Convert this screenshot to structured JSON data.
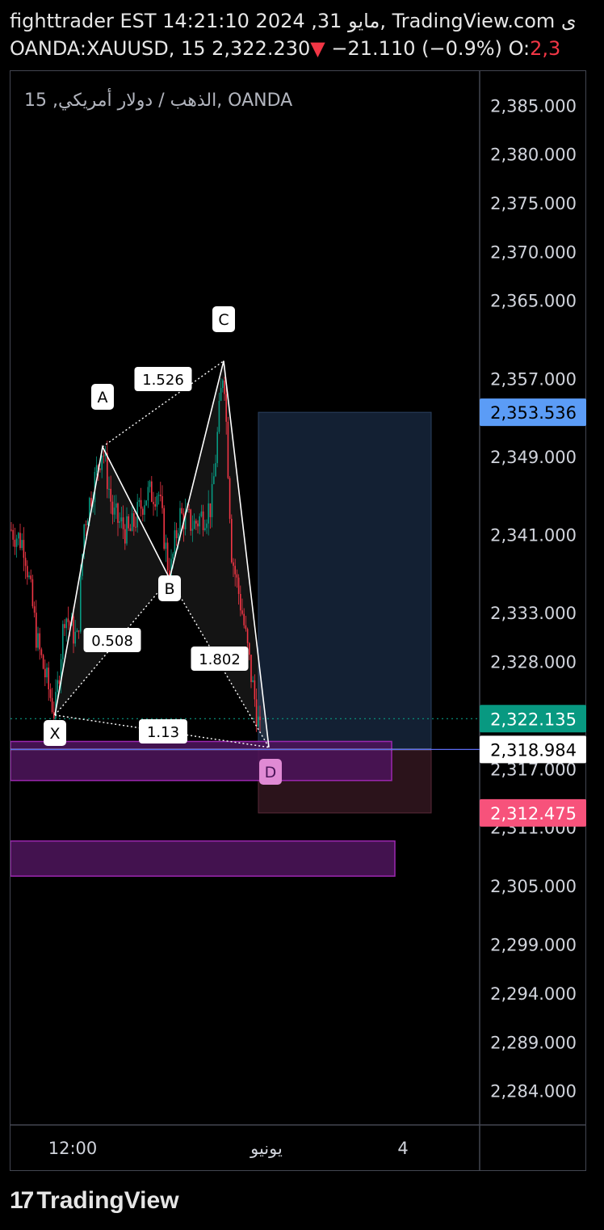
{
  "header": {
    "line1": "fighttrader EST 14:21:10 2024 ,31 مايو, TradingView.com ى",
    "symbol": "OANDA:XAUUSD, 15",
    "last_price": "2,322.230",
    "change_arrow": "▼",
    "change": "−21.110 (−0.9%)",
    "open_label": "O:",
    "open_value": "2,3"
  },
  "chart_data": {
    "type": "candlestick",
    "title": "الذهب / دولار أمريكي, 15, OANDA",
    "ylim": [
      2280.5,
      2388.5
    ],
    "price_ticks": [
      2385,
      2380,
      2375,
      2370,
      2365,
      2357,
      2349,
      2341,
      2333,
      2328,
      2317,
      2311,
      2305,
      2299,
      2294,
      2289,
      2284
    ],
    "price_tick_labels": [
      "2,385.000",
      "2,380.000",
      "2,375.000",
      "2,370.000",
      "2,365.000",
      "2,357.000",
      "2,349.000",
      "2,341.000",
      "2,333.000",
      "2,328.000",
      "2,317.000",
      "2,311.000",
      "2,305.000",
      "2,299.000",
      "2,294.000",
      "2,289.000",
      "2,284.000"
    ],
    "time_labels": [
      "12:00",
      "يونيو",
      "4"
    ],
    "price_tags": [
      {
        "value": 2353.536,
        "label": "2,353.536",
        "bg": "#5b9cf6",
        "fg": "#000000"
      },
      {
        "value": 2322.135,
        "label": "2,322.135",
        "bg": "#089981",
        "fg": "#ffffff"
      },
      {
        "value": 2318.984,
        "label": "2,318.984",
        "bg": "#ffffff",
        "fg": "#000000"
      },
      {
        "value": 2312.475,
        "label": "2,312.475",
        "bg": "#f7527b",
        "fg": "#ffffff"
      }
    ],
    "pattern": {
      "points": [
        {
          "label": "X",
          "price": 2322.5
        },
        {
          "label": "A",
          "price": 2350.0
        },
        {
          "label": "B",
          "price": 2336.5
        },
        {
          "label": "C",
          "price": 2358.8
        },
        {
          "label": "D",
          "price": 2319.2
        }
      ],
      "ratios": [
        "0.508",
        "1.526",
        "1.802",
        "1.13"
      ]
    },
    "position": {
      "entry": 2318.984,
      "target": 2353.536,
      "stop": 2312.475
    },
    "zones": [
      {
        "top": 2319.8,
        "bottom": 2315.8
      },
      {
        "top": 2309.6,
        "bottom": 2306.0
      }
    ],
    "colors": {
      "up": "#089981",
      "down": "#f23645",
      "pattern": "#ffffff",
      "zone": "#9c27b0"
    }
  },
  "footer": {
    "brand": "TradingView"
  }
}
